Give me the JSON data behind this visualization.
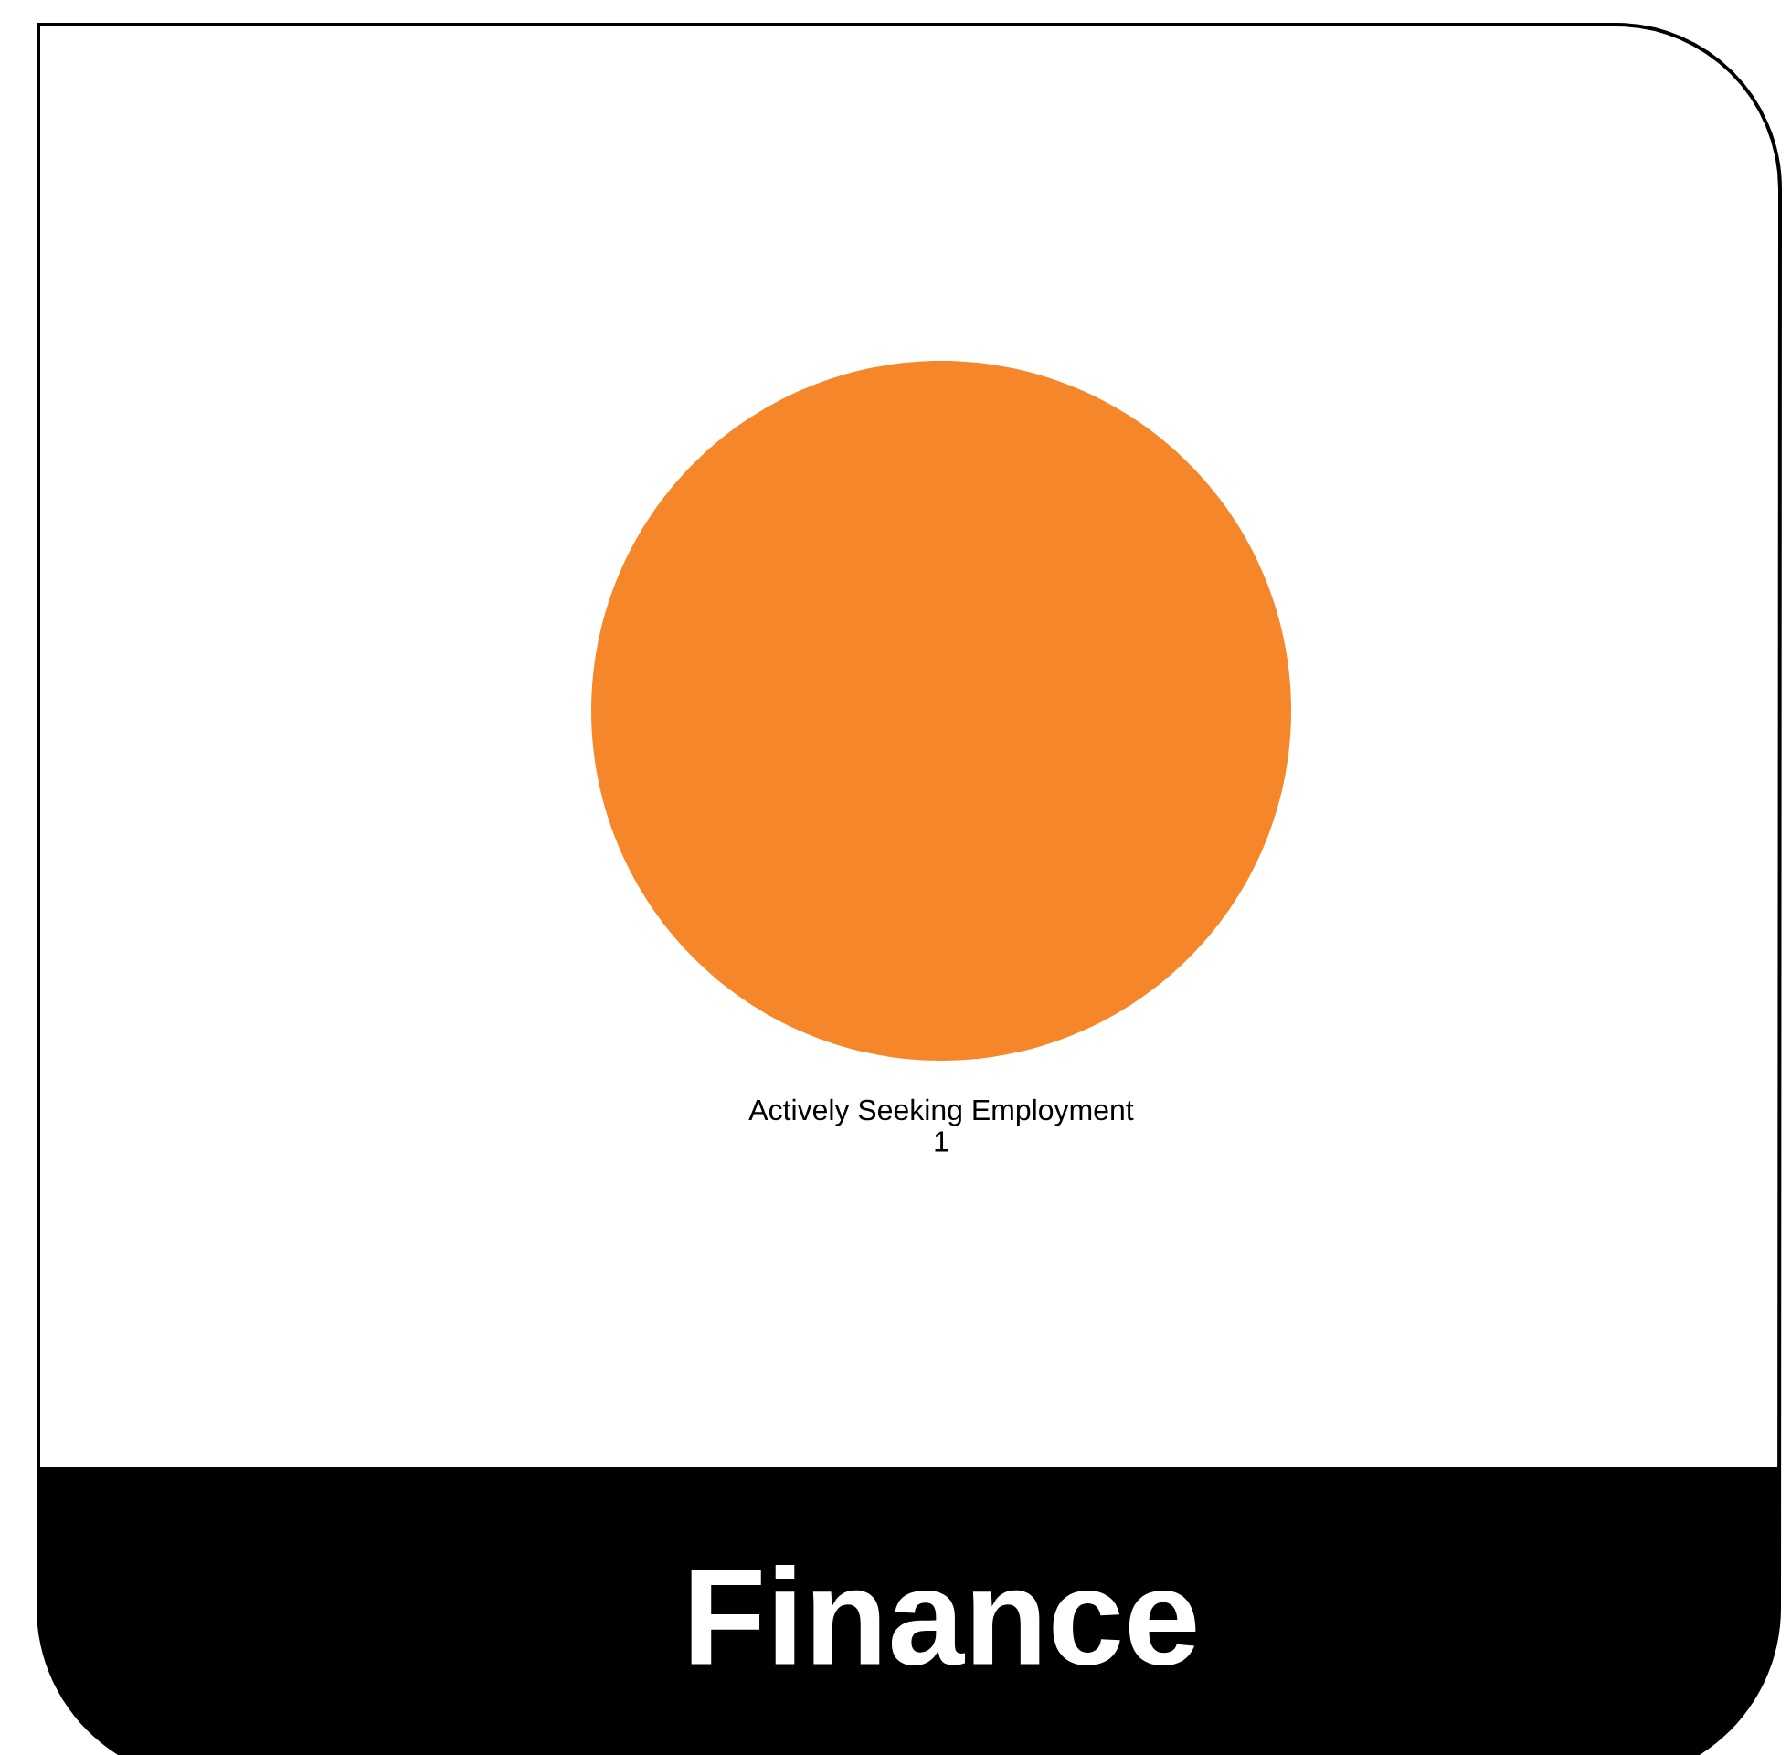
{
  "chart_data": {
    "type": "pie",
    "title": "Finance",
    "categories": [
      "Actively Seeking Employment"
    ],
    "values": [
      1
    ],
    "colors": [
      "#f5872a"
    ],
    "data_labels": true
  }
}
